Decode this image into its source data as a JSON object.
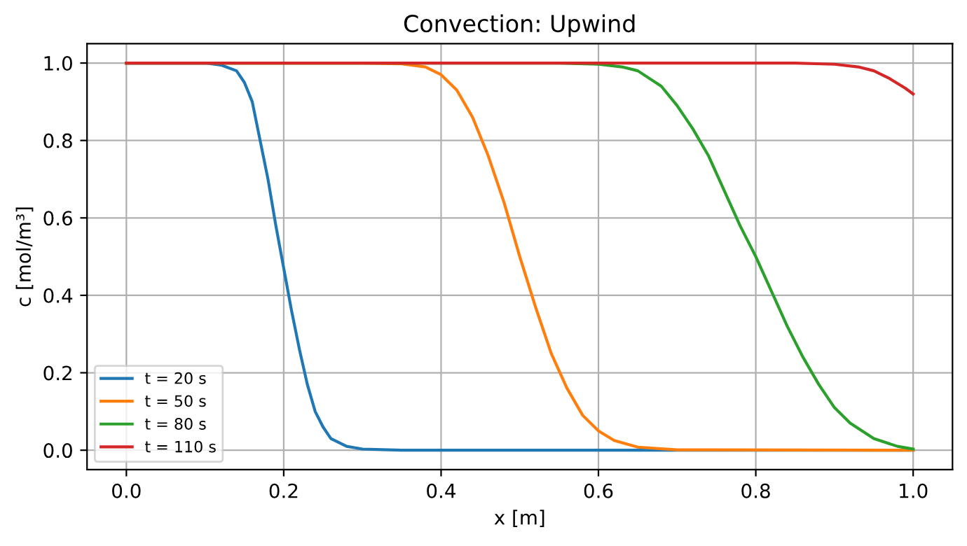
{
  "chart_data": {
    "type": "line",
    "title": "Convection: Upwind",
    "xlabel": "x [m]",
    "ylabel": "c [mol/m³]",
    "xlim": [
      -0.05,
      1.05
    ],
    "ylim": [
      -0.05,
      1.05
    ],
    "xticks": [
      {
        "value": 0,
        "label": "0.0"
      },
      0.2,
      0.4,
      0.6,
      0.8,
      {
        "value": 1,
        "label": "1.0"
      }
    ],
    "yticks": [
      {
        "value": 0,
        "label": "0.0"
      },
      0.2,
      0.4,
      0.6,
      0.8,
      {
        "value": 1,
        "label": "1.0"
      }
    ],
    "grid": true,
    "legend": "bottom left",
    "series": [
      {
        "name": "t = 20 s",
        "color": "#1f77b4",
        "x": [
          0,
          0.1,
          0.12,
          0.14,
          0.15,
          0.16,
          0.17,
          0.18,
          0.19,
          0.2,
          0.21,
          0.22,
          0.23,
          0.24,
          0.25,
          0.26,
          0.28,
          0.3,
          0.35,
          1.0
        ],
        "values": [
          1,
          1,
          0.995,
          0.98,
          0.95,
          0.9,
          0.8,
          0.7,
          0.58,
          0.47,
          0.36,
          0.26,
          0.17,
          0.1,
          0.06,
          0.03,
          0.01,
          0.003,
          0,
          0
        ]
      },
      {
        "name": "t = 50 s",
        "color": "#ff7f0e",
        "x": [
          0,
          0.3,
          0.35,
          0.38,
          0.4,
          0.42,
          0.44,
          0.46,
          0.48,
          0.5,
          0.52,
          0.54,
          0.56,
          0.58,
          0.6,
          0.62,
          0.65,
          0.7,
          1.0
        ],
        "values": [
          1,
          1,
          0.998,
          0.99,
          0.97,
          0.93,
          0.86,
          0.76,
          0.64,
          0.5,
          0.37,
          0.25,
          0.16,
          0.09,
          0.05,
          0.025,
          0.008,
          0.001,
          0
        ]
      },
      {
        "name": "t = 80 s",
        "color": "#2ca02c",
        "x": [
          0,
          0.55,
          0.6,
          0.63,
          0.65,
          0.68,
          0.7,
          0.72,
          0.74,
          0.76,
          0.78,
          0.8,
          0.82,
          0.84,
          0.86,
          0.88,
          0.9,
          0.92,
          0.95,
          0.98,
          1.0
        ],
        "values": [
          1,
          1,
          0.997,
          0.99,
          0.98,
          0.94,
          0.89,
          0.83,
          0.76,
          0.67,
          0.58,
          0.5,
          0.41,
          0.32,
          0.24,
          0.17,
          0.11,
          0.07,
          0.03,
          0.01,
          0.003
        ]
      },
      {
        "name": "t = 110 s",
        "color": "#d62728",
        "x": [
          0,
          0.85,
          0.9,
          0.93,
          0.95,
          0.97,
          0.99,
          1.0
        ],
        "values": [
          1,
          1,
          0.997,
          0.99,
          0.98,
          0.96,
          0.935,
          0.92
        ]
      }
    ]
  }
}
